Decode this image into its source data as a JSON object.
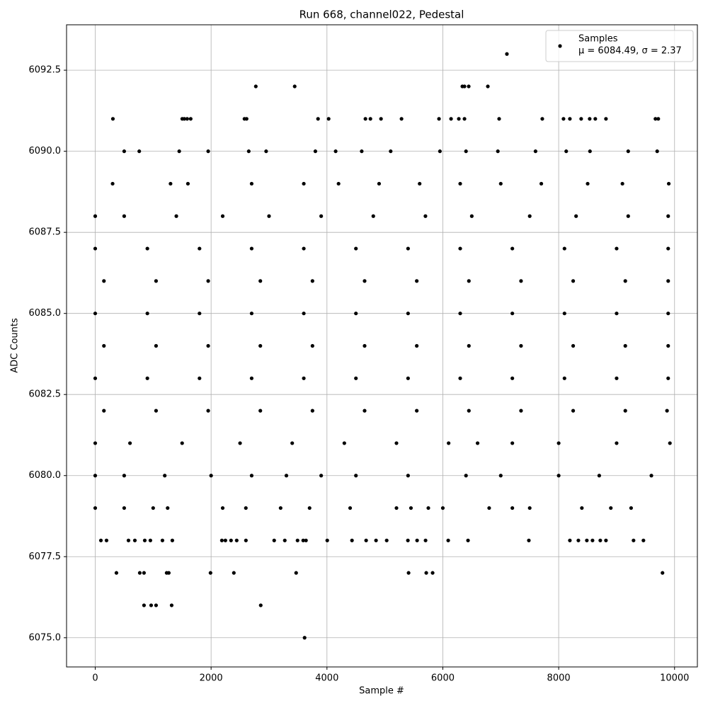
{
  "chart_data": {
    "type": "scatter",
    "title": "Run 668, channel022, Pedestal",
    "x_label": "Sample #",
    "y_label": "ADC Counts",
    "legend_note": "μ = 6084.49, σ = 2.37",
    "legend_position": "upper right",
    "grid": true,
    "xlim": [
      -495,
      10394
    ],
    "ylim": [
      6074.1,
      6093.9
    ],
    "xticks": [
      0,
      2000,
      4000,
      6000,
      8000,
      10000
    ],
    "yticks": [
      {
        "value": 6075,
        "label": "6075.0"
      },
      {
        "value": 6077.5,
        "label": "6077.5"
      },
      {
        "value": 6080,
        "label": "6080.0"
      },
      {
        "value": 6082.5,
        "label": "6082.5"
      },
      {
        "value": 6085,
        "label": "6085.0"
      },
      {
        "value": 6087.5,
        "label": "6087.5"
      },
      {
        "value": 6090,
        "label": "6090.0"
      },
      {
        "value": 6092.5,
        "label": "6092.5"
      }
    ],
    "series": [
      {
        "name": "Samples",
        "color": "#000000",
        "x": [
          7106,
          2772,
          3443,
          6337,
          6374,
          6447,
          6777,
          305,
          1502,
          1538,
          1587,
          1648,
          2576,
          2613,
          3846,
          4029,
          4664,
          4750,
          4933,
          5287,
          5934,
          6142,
          6276,
          6374,
          6972,
          7717,
          8083,
          8193,
          8388,
          8535,
          8632,
          8816,
          9670,
          9719,
          500,
          760,
          1450,
          1950,
          2650,
          2950,
          3800,
          4150,
          4600,
          5100,
          5950,
          6400,
          6950,
          7600,
          8130,
          8540,
          9200,
          9700,
          300,
          1300,
          1600,
          2700,
          3600,
          4200,
          4900,
          5600,
          6300,
          7000,
          7700,
          8500,
          9100,
          9900,
          0,
          500,
          1400,
          2200,
          3000,
          3900,
          4800,
          5700,
          6500,
          7500,
          8300,
          9200,
          9890,
          0,
          900,
          1800,
          2700,
          3600,
          4500,
          5400,
          6300,
          7200,
          8100,
          9000,
          9890,
          150,
          1050,
          1950,
          2850,
          3750,
          4650,
          5550,
          6450,
          7350,
          8250,
          9150,
          9890,
          0,
          900,
          1800,
          2700,
          3600,
          4500,
          5400,
          6300,
          7200,
          8100,
          9000,
          9890,
          150,
          1050,
          1950,
          2850,
          3750,
          4650,
          5550,
          6450,
          7350,
          8250,
          9150,
          9890,
          0,
          900,
          1800,
          2700,
          3600,
          4500,
          5400,
          6300,
          7200,
          8100,
          9000,
          9890,
          150,
          1050,
          1950,
          2850,
          3750,
          4650,
          5550,
          6450,
          7350,
          8250,
          9150,
          9870,
          0,
          600,
          1500,
          2500,
          3400,
          4300,
          5200,
          6100,
          6600,
          7200,
          8000,
          9000,
          9920,
          0,
          500,
          1200,
          2000,
          2700,
          3300,
          3900,
          4500,
          5400,
          6400,
          7000,
          8000,
          8700,
          9600,
          0,
          500,
          1000,
          1250,
          2200,
          2600,
          3200,
          3700,
          4400,
          5200,
          5450,
          5750,
          6000,
          6800,
          7200,
          7500,
          8400,
          8900,
          9250,
          98,
          195,
          574,
          684,
          855,
          952,
          1160,
          1331,
          2186,
          2247,
          2344,
          2442,
          2601,
          3089,
          3272,
          3492,
          3590,
          3638,
          4005,
          4432,
          4676,
          4847,
          5031,
          5397,
          5556,
          5702,
          6093,
          6435,
          7485,
          8193,
          8340,
          8486,
          8584,
          8718,
          8816,
          9292,
          9463,
          366,
          769,
          842,
          1233,
          1270,
          1990,
          2393,
          3468,
          5409,
          5714,
          5824,
          9792,
          842,
          965,
          1050,
          1319,
          2857,
          3614
        ],
        "values": [
          6093,
          6092,
          6092,
          6092,
          6092,
          6092,
          6092,
          6091,
          6091,
          6091,
          6091,
          6091,
          6091,
          6091,
          6091,
          6091,
          6091,
          6091,
          6091,
          6091,
          6091,
          6091,
          6091,
          6091,
          6091,
          6091,
          6091,
          6091,
          6091,
          6091,
          6091,
          6091,
          6091,
          6091,
          6090,
          6090,
          6090,
          6090,
          6090,
          6090,
          6090,
          6090,
          6090,
          6090,
          6090,
          6090,
          6090,
          6090,
          6090,
          6090,
          6090,
          6090,
          6089,
          6089,
          6089,
          6089,
          6089,
          6089,
          6089,
          6089,
          6089,
          6089,
          6089,
          6089,
          6089,
          6089,
          6088,
          6088,
          6088,
          6088,
          6088,
          6088,
          6088,
          6088,
          6088,
          6088,
          6088,
          6088,
          6088,
          6087,
          6087,
          6087,
          6087,
          6087,
          6087,
          6087,
          6087,
          6087,
          6087,
          6087,
          6087,
          6086,
          6086,
          6086,
          6086,
          6086,
          6086,
          6086,
          6086,
          6086,
          6086,
          6086,
          6086,
          6085,
          6085,
          6085,
          6085,
          6085,
          6085,
          6085,
          6085,
          6085,
          6085,
          6085,
          6085,
          6084,
          6084,
          6084,
          6084,
          6084,
          6084,
          6084,
          6084,
          6084,
          6084,
          6084,
          6084,
          6083,
          6083,
          6083,
          6083,
          6083,
          6083,
          6083,
          6083,
          6083,
          6083,
          6083,
          6083,
          6082,
          6082,
          6082,
          6082,
          6082,
          6082,
          6082,
          6082,
          6082,
          6082,
          6082,
          6082,
          6081,
          6081,
          6081,
          6081,
          6081,
          6081,
          6081,
          6081,
          6081,
          6081,
          6081,
          6081,
          6081,
          6080,
          6080,
          6080,
          6080,
          6080,
          6080,
          6080,
          6080,
          6080,
          6080,
          6080,
          6080,
          6080,
          6080,
          6079,
          6079,
          6079,
          6079,
          6079,
          6079,
          6079,
          6079,
          6079,
          6079,
          6079,
          6079,
          6079,
          6079,
          6079,
          6079,
          6079,
          6079,
          6079,
          6078,
          6078,
          6078,
          6078,
          6078,
          6078,
          6078,
          6078,
          6078,
          6078,
          6078,
          6078,
          6078,
          6078,
          6078,
          6078,
          6078,
          6078,
          6078,
          6078,
          6078,
          6078,
          6078,
          6078,
          6078,
          6078,
          6078,
          6078,
          6078,
          6078,
          6078,
          6078,
          6078,
          6078,
          6078,
          6078,
          6078,
          6077,
          6077,
          6077,
          6077,
          6077,
          6077,
          6077,
          6077,
          6077,
          6077,
          6077,
          6077,
          6076,
          6076,
          6076,
          6076,
          6076,
          6075
        ]
      }
    ]
  }
}
